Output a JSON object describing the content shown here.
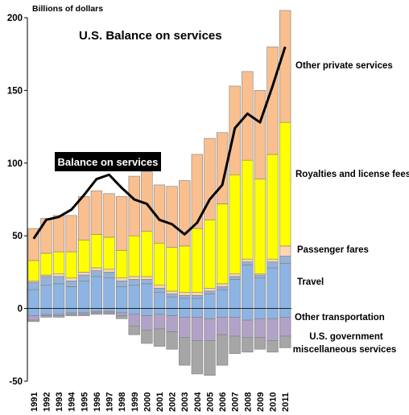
{
  "chart_data": {
    "type": "bar",
    "title": "U.S. Balance  on  services",
    "ylabel": "Billions of dollars",
    "line_label": "Balance on services",
    "ylim": [
      -50,
      210
    ],
    "yticks": [
      -50,
      0,
      50,
      100,
      150,
      200
    ],
    "categories": [
      "1991",
      "1992",
      "1993",
      "1994",
      "1995",
      "1996",
      "1997",
      "1998",
      "1999",
      "2000",
      "2001",
      "2002",
      "2003",
      "2004",
      "2005",
      "2006",
      "2007",
      "2008",
      "2009",
      "2010",
      "2011"
    ],
    "series": [
      {
        "name": "Other transportation",
        "color": "#8db4e2",
        "values": [
          13,
          16,
          17,
          15,
          19,
          22,
          21,
          15,
          16,
          17,
          11,
          8,
          7,
          7,
          10,
          13,
          20,
          30,
          21,
          28,
          31
        ],
        "negative": [
          -5,
          -4,
          -4,
          -3,
          -3,
          -2,
          -2,
          -3,
          -4,
          -5,
          -4,
          -5,
          -6,
          -6,
          -7,
          -6,
          -6,
          -8,
          -7,
          -7,
          -6
        ]
      },
      {
        "name": "Travel",
        "color": "#95b3d7",
        "values": [
          5,
          6,
          5,
          4,
          4,
          4,
          4,
          4,
          4,
          3,
          3,
          2,
          2,
          2,
          2,
          2,
          2,
          2,
          2,
          4,
          5
        ]
      },
      {
        "name": "Passenger fares",
        "color": "#fcd5b4",
        "values": [
          1,
          1,
          2,
          2,
          2,
          2,
          2,
          2,
          2,
          2,
          2,
          2,
          2,
          2,
          2,
          2,
          2,
          2,
          1,
          2,
          7
        ]
      },
      {
        "name": "Royalties and license fees",
        "color": "#ffff00",
        "values": [
          14,
          15,
          15,
          18,
          22,
          23,
          22,
          19,
          28,
          31,
          29,
          30,
          32,
          44,
          47,
          55,
          68,
          68,
          65,
          72,
          85
        ]
      },
      {
        "name": "Other private services",
        "color": "#fabf8f",
        "values": [
          22,
          24,
          25,
          25,
          30,
          30,
          30,
          37,
          41,
          41,
          40,
          42,
          45,
          51,
          56,
          49,
          61,
          61,
          61,
          74,
          77
        ]
      },
      {
        "name": "U.S. government miscellaneous services",
        "color": "#b2a2c7",
        "negative": [
          -3,
          -1,
          -1,
          -1,
          -1,
          -1,
          -1,
          -2,
          -8,
          -10,
          -10,
          -11,
          -14,
          -16,
          -15,
          -12,
          -13,
          -12,
          -13,
          -15,
          -13
        ]
      },
      {
        "name": "U.S. government miscellaneous services",
        "color": "#a6a6a6",
        "negative": [
          -1,
          -1,
          -1,
          -1,
          -1,
          -1,
          -1,
          -2,
          -6,
          -9,
          -12,
          -12,
          -19,
          -23,
          -24,
          -21,
          -12,
          -10,
          -8,
          -8,
          -8
        ]
      }
    ],
    "balance_line": [
      48,
      61,
      63,
      68,
      78,
      89,
      92,
      83,
      75,
      72,
      61,
      58,
      51,
      59,
      75,
      85,
      124,
      134,
      128,
      153,
      180
    ],
    "labels": {
      "other_private": "Other private services",
      "royalties": "Royalties and license fees",
      "passenger": "Passenger fares",
      "travel": "Travel",
      "other_transport": "Other transportation",
      "gov_line1": "U.S. government",
      "gov_line2": "miscellaneous services"
    },
    "grid": false
  },
  "colors": {
    "other_transport": "#8db4e2",
    "travel": "#95b3d7",
    "passenger": "#fcd5b4",
    "royalties": "#ffff00",
    "other_private": "#fabf8f",
    "gov_purple": "#b2a2c7",
    "gov_gray": "#a6a6a6",
    "line": "#000000"
  }
}
